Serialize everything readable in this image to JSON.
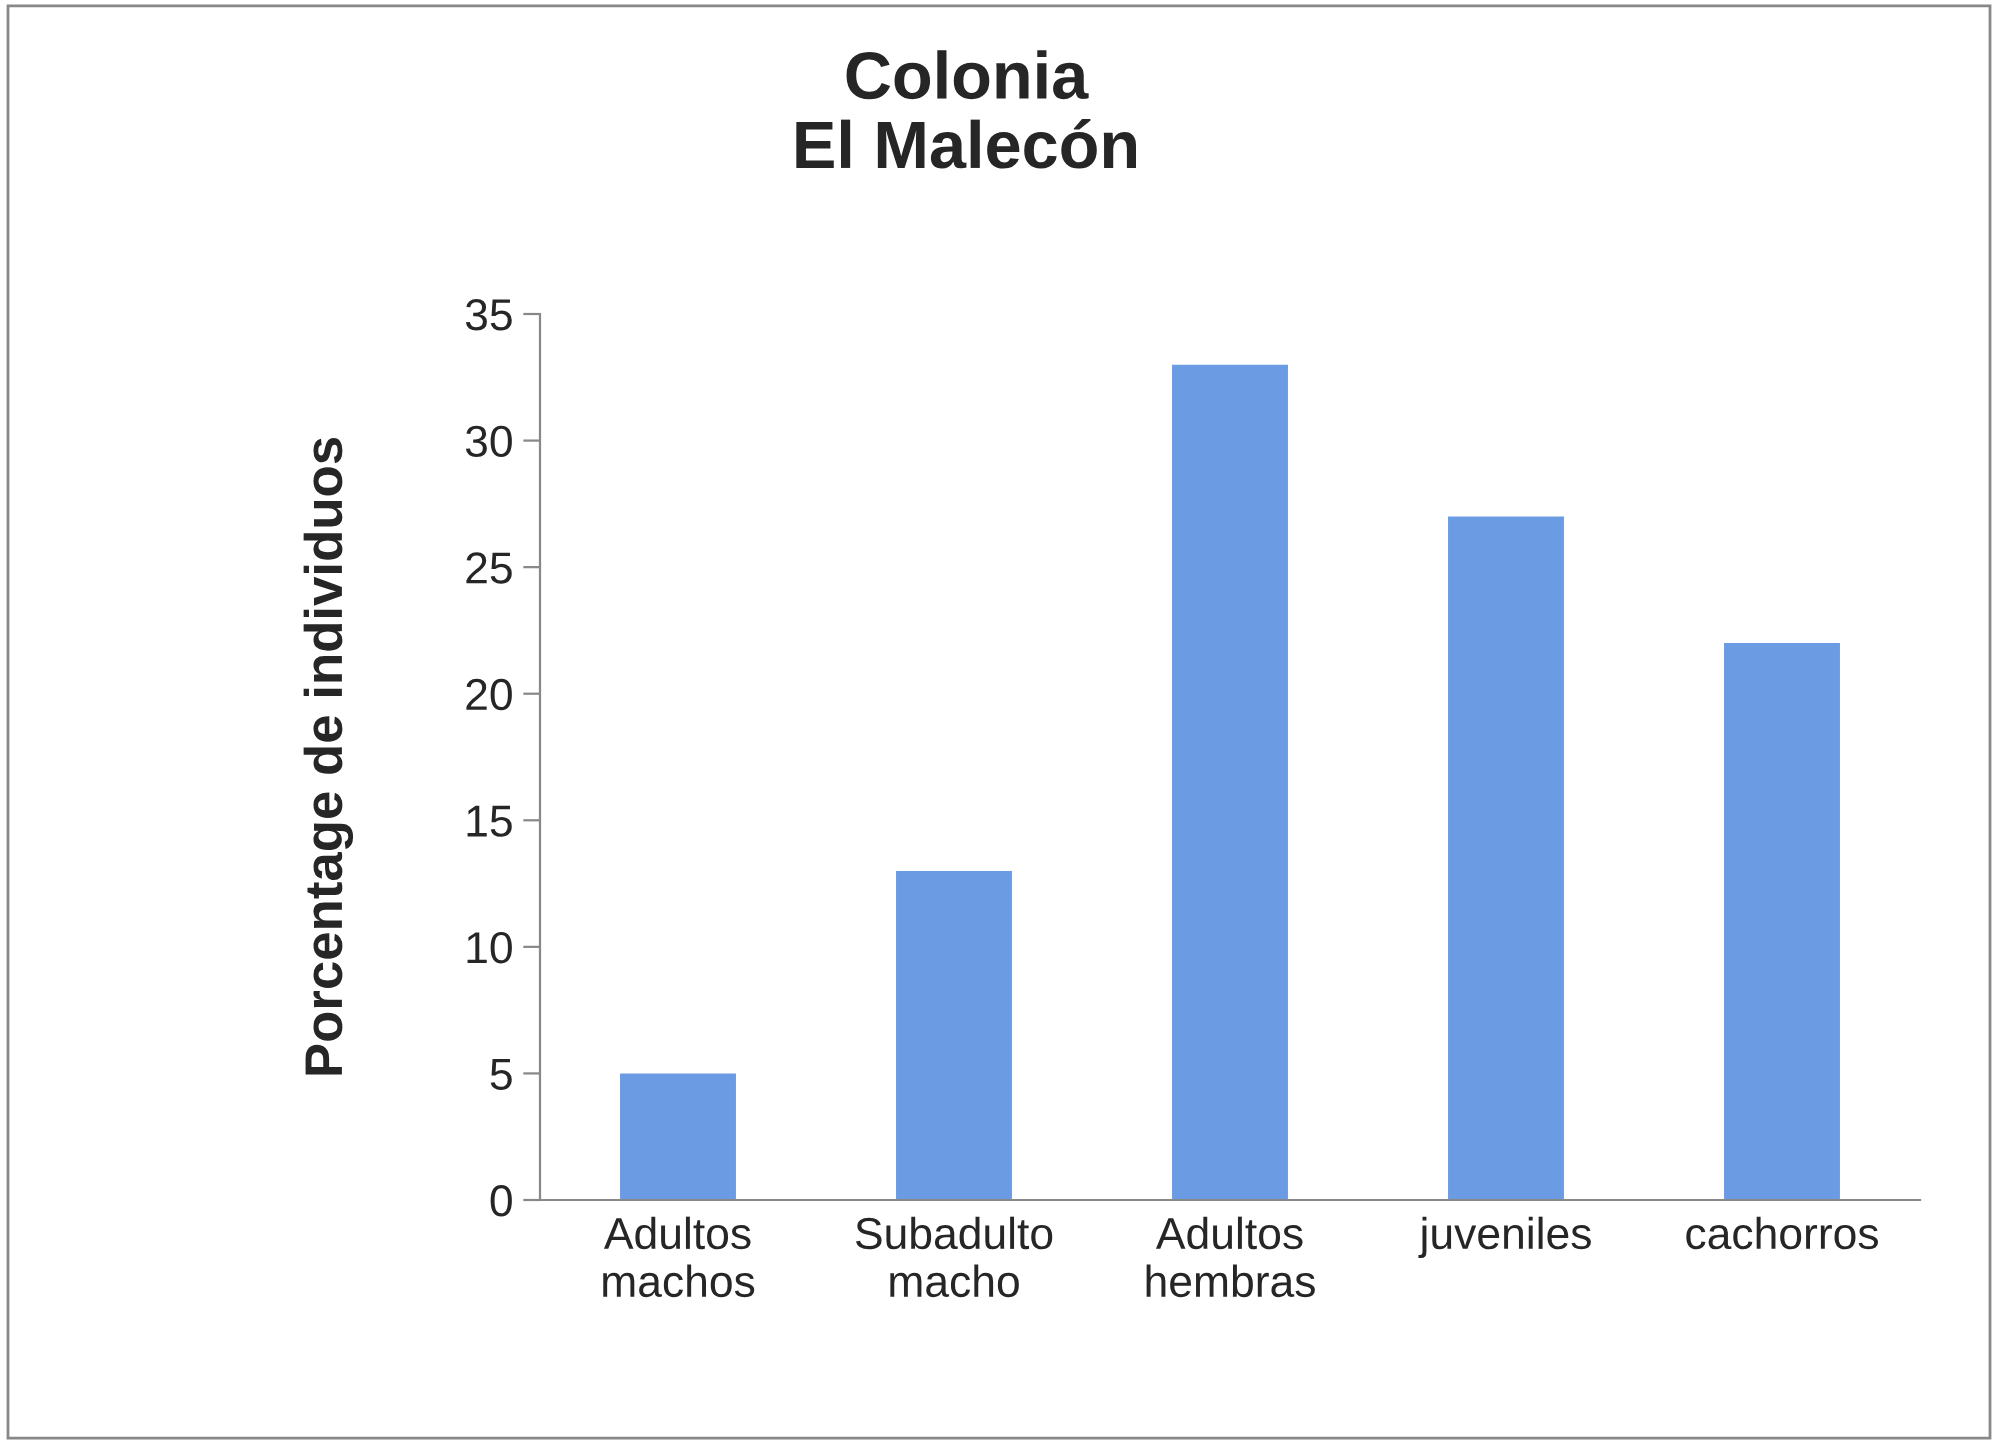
{
  "chart_data": {
    "type": "bar",
    "title": "Colonia\nEl Malecón",
    "ylabel": "Porcentage de individuos",
    "categories": [
      "Adultos\nmachos",
      "Subadulto\nmacho",
      "Adultos\nhembras",
      "juveniles",
      "cachorros"
    ],
    "values": [
      5,
      13,
      33,
      27,
      22
    ],
    "color": "#6a9be3",
    "ylim": [
      0,
      35
    ],
    "yticks": [
      0,
      5,
      10,
      15,
      20,
      25,
      30,
      35
    ],
    "grid": false,
    "legend": false
  }
}
